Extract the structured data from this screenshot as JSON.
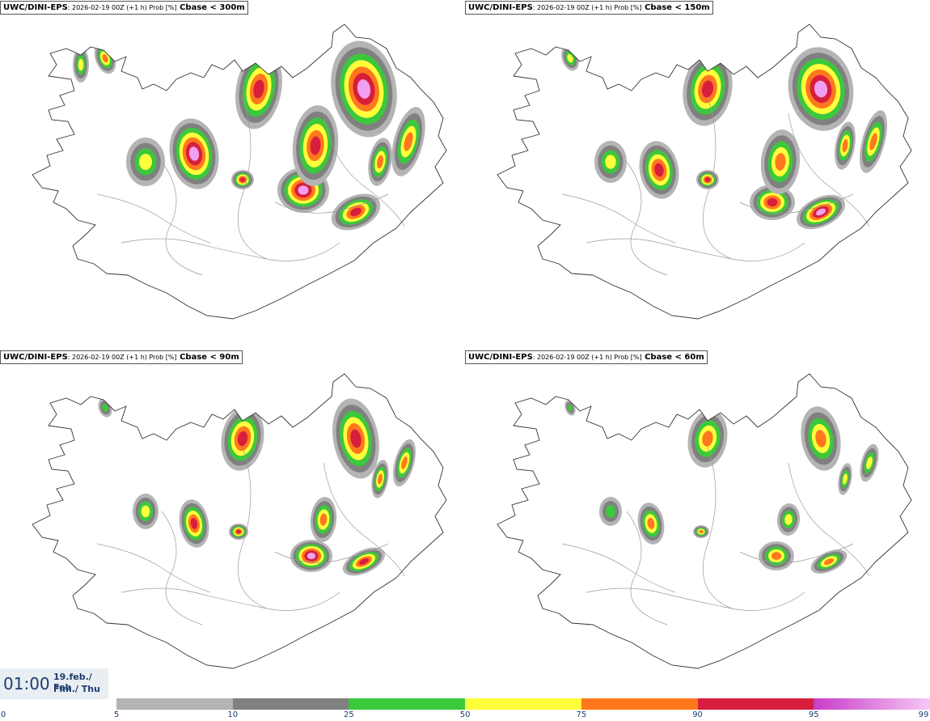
{
  "panels": [
    {
      "model": "UWC/DINI-EPS",
      "meta": ": 2026-02-19 00Z (+1 h) Prob [%]",
      "threshold": "Cbase < 300m"
    },
    {
      "model": "UWC/DINI-EPS",
      "meta": ": 2026-02-19 00Z (+1 h) Prob [%]",
      "threshold": "Cbase < 150m"
    },
    {
      "model": "UWC/DINI-EPS",
      "meta": ": 2026-02-19 00Z (+1 h) Prob [%]",
      "threshold": "Cbase < 90m"
    },
    {
      "model": "UWC/DINI-EPS",
      "meta": ": 2026-02-19 00Z (+1 h) Prob [%]",
      "threshold": "Cbase < 60m"
    }
  ],
  "timebox": {
    "time": "01:00",
    "date": "19.feb./ Feb",
    "day": "Fim./ Thu"
  },
  "colorbar": {
    "ticks": [
      "0",
      "5",
      "10",
      "25",
      "50",
      "75",
      "90",
      "95",
      "99"
    ],
    "colors": [
      "#b4b4b4",
      "#808080",
      "#3cc83c",
      "#ffff3c",
      "#ff781e",
      "#d71e3c",
      "#c83cc8"
    ],
    "last_gradient_to": "#f5c8f5"
  }
}
